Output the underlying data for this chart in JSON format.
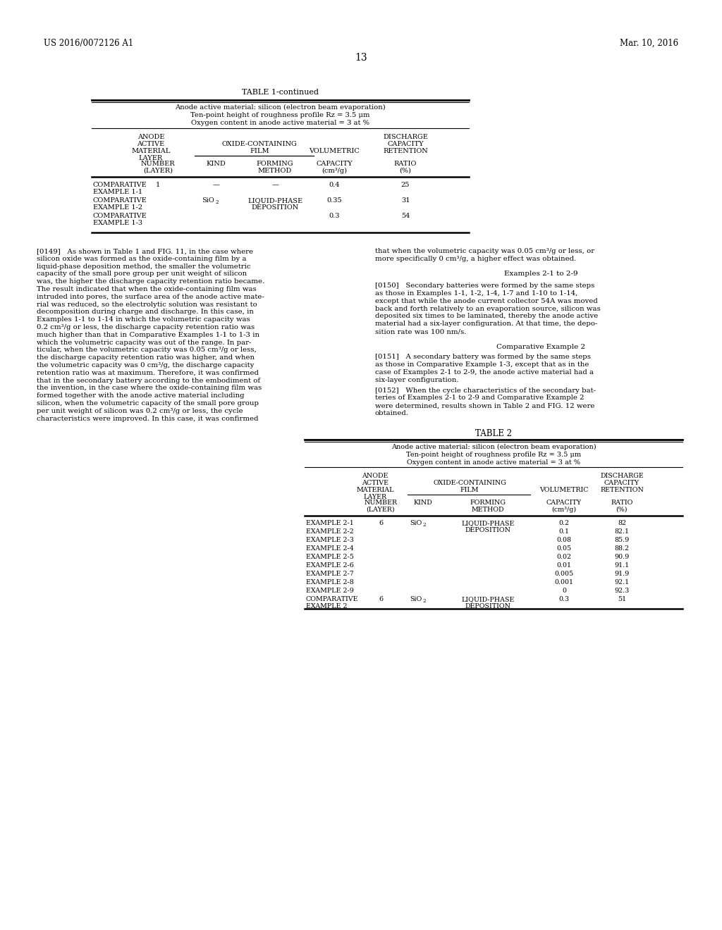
{
  "page_number": "13",
  "header_left": "US 2016/0072126 A1",
  "header_right": "Mar. 10, 2016",
  "table1_title": "TABLE 1-continued",
  "table1_subtitle1": "Anode active material: silicon (electron beam evaporation)",
  "table1_subtitle2": "Ten-point height of roughness profile Rz = 3.5 μm",
  "table1_subtitle3": "Oxygen content in anode active material = 3 at %",
  "table2_title": "TABLE 2",
  "table2_subtitle1": "Anode active material: silicon (electron beam evaporation)",
  "table2_subtitle2": "Ten-point height of roughness profile Rz = 3.5 μm",
  "table2_subtitle3": "Oxygen content in anode active material = 3 at %",
  "examples_heading": "Examples 2-1 to 2-9",
  "comp_example2_heading": "Comparative Example 2",
  "left_col_lines": [
    "[0149]   As shown in Table 1 and FIG. 11, in the case where",
    "silicon oxide was formed as the oxide-containing film by a",
    "liquid-phase deposition method, the smaller the volumetric",
    "capacity of the small pore group per unit weight of silicon",
    "was, the higher the discharge capacity retention ratio became.",
    "The result indicated that when the oxide-containing film was",
    "intruded into pores, the surface area of the anode active mate-",
    "rial was reduced, so the electrolytic solution was resistant to",
    "decomposition during charge and discharge. In this case, in",
    "Examples 1-1 to 1-14 in which the volumetric capacity was",
    "0.2 cm³/g or less, the discharge capacity retention ratio was",
    "much higher than that in Comparative Examples 1-1 to 1-3 in",
    "which the volumetric capacity was out of the range. In par-",
    "ticular, when the volumetric capacity was 0.05 cm³/g or less,",
    "the discharge capacity retention ratio was higher, and when",
    "the volumetric capacity was 0 cm³/g, the discharge capacity",
    "retention ratio was at maximum. Therefore, it was confirmed",
    "that in the secondary battery according to the embodiment of",
    "the invention, in the case where the oxide-containing film was",
    "formed together with the anode active material including",
    "silicon, when the volumetric capacity of the small pore group",
    "per unit weight of silicon was 0.2 cm³/g or less, the cycle",
    "characteristics were improved. In this case, it was confirmed"
  ],
  "right_col_lines_149": [
    "that when the volumetric capacity was 0.05 cm³/g or less, or",
    "more specifically 0 cm³/g, a higher effect was obtained."
  ],
  "right_col_lines_150": [
    "[0150]   Secondary batteries were formed by the same steps",
    "as those in Examples 1-1, 1-2, 1-4, 1-7 and 1-10 to 1-14,",
    "except that while the anode current collector 54A was moved",
    "back and forth relatively to an evaporation source, silicon was",
    "deposited six times to be laminated, thereby the anode active",
    "material had a six-layer configuration. At that time, the depo-",
    "sition rate was 100 nm/s."
  ],
  "right_col_lines_151": [
    "[0151]   A secondary battery was formed by the same steps",
    "as those in Comparative Example 1-3, except that as in the",
    "case of Examples 2-1 to 2-9, the anode active material had a",
    "six-layer configuration."
  ],
  "right_col_lines_152": [
    "[0152]   When the cycle characteristics of the secondary bat-",
    "teries of Examples 2-1 to 2-9 and Comparative Example 2",
    "were determined, results shown in Table 2 and FIG. 12 were",
    "obtained."
  ]
}
